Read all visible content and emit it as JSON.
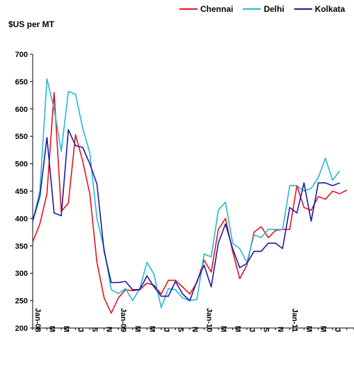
{
  "chart_data": {
    "type": "line",
    "title": "",
    "ylabel": "$US per MT",
    "xlabel": "",
    "ylim": [
      200,
      700
    ],
    "yticks": [
      200,
      250,
      300,
      350,
      400,
      450,
      500,
      550,
      600,
      650,
      700
    ],
    "x_tick_labels": [
      "Jan-08",
      "M",
      "M",
      "J",
      "S",
      "N",
      "Jan-09",
      "M",
      "M",
      "J",
      "S",
      "N",
      "Jan-10",
      "M",
      "M",
      "J",
      "S",
      "N",
      "Jan-11",
      "M",
      "M",
      "J"
    ],
    "legend_position": "top-right",
    "grid": false,
    "series": [
      {
        "name": "Chennai",
        "color": "#e8101a",
        "values": [
          357,
          390,
          445,
          630,
          413,
          428,
          553,
          505,
          445,
          320,
          255,
          227,
          255,
          270,
          268,
          270,
          282,
          278,
          262,
          287,
          287,
          275,
          262,
          283,
          324,
          302,
          380,
          400,
          340,
          290,
          315,
          375,
          385,
          365,
          378,
          380,
          380,
          460,
          420,
          415,
          440,
          435,
          450,
          445,
          452
        ]
      },
      {
        "name": "Delhi",
        "color": "#27b5d6",
        "values": [
          395,
          450,
          655,
          600,
          523,
          632,
          627,
          565,
          520,
          400,
          345,
          270,
          263,
          272,
          250,
          272,
          320,
          298,
          237,
          272,
          270,
          255,
          250,
          252,
          335,
          330,
          415,
          430,
          355,
          345,
          320,
          370,
          365,
          380,
          380,
          380,
          460,
          460,
          450,
          455,
          475,
          510,
          470,
          487
        ]
      },
      {
        "name": "Kolkata",
        "color": "#1a17a6",
        "values": [
          395,
          440,
          548,
          410,
          405,
          562,
          533,
          530,
          500,
          463,
          340,
          283,
          283,
          285,
          270,
          270,
          295,
          275,
          258,
          258,
          285,
          262,
          250,
          285,
          315,
          275,
          355,
          390,
          345,
          310,
          318,
          340,
          340,
          355,
          355,
          345,
          420,
          410,
          465,
          395,
          465,
          465,
          460,
          465
        ]
      }
    ]
  }
}
